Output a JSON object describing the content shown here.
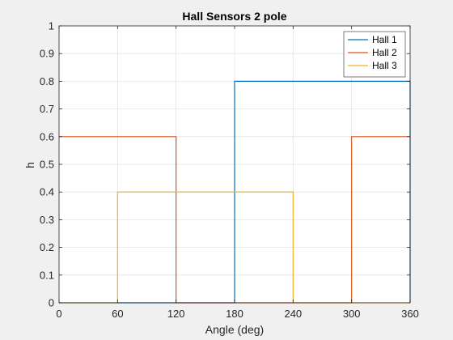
{
  "chart_data": {
    "type": "line",
    "title": "Hall Sensors 2 pole",
    "xlabel": "Angle (deg)",
    "ylabel": "h",
    "xlim": [
      0,
      360
    ],
    "ylim": [
      0,
      1
    ],
    "xticks": [
      0,
      60,
      120,
      180,
      240,
      300,
      360
    ],
    "yticks": [
      0,
      0.1,
      0.2,
      0.3,
      0.4,
      0.5,
      0.6,
      0.7,
      0.8,
      0.9,
      1
    ],
    "grid": true,
    "legend_position": "top-right",
    "series": [
      {
        "name": "Hall 1",
        "color": "#0072bd",
        "x": [
          0,
          180,
          180,
          360,
          360
        ],
        "y": [
          0,
          0,
          0.8,
          0.8,
          0
        ]
      },
      {
        "name": "Hall 2",
        "color": "#d95319",
        "x": [
          0,
          120,
          120,
          300,
          300,
          360
        ],
        "y": [
          0.6,
          0.6,
          0,
          0,
          0.6,
          0.6
        ]
      },
      {
        "name": "Hall 3",
        "color": "#edb120",
        "x": [
          0,
          60,
          60,
          240,
          240,
          360
        ],
        "y": [
          0,
          0,
          0.4,
          0.4,
          0,
          0
        ]
      }
    ]
  }
}
